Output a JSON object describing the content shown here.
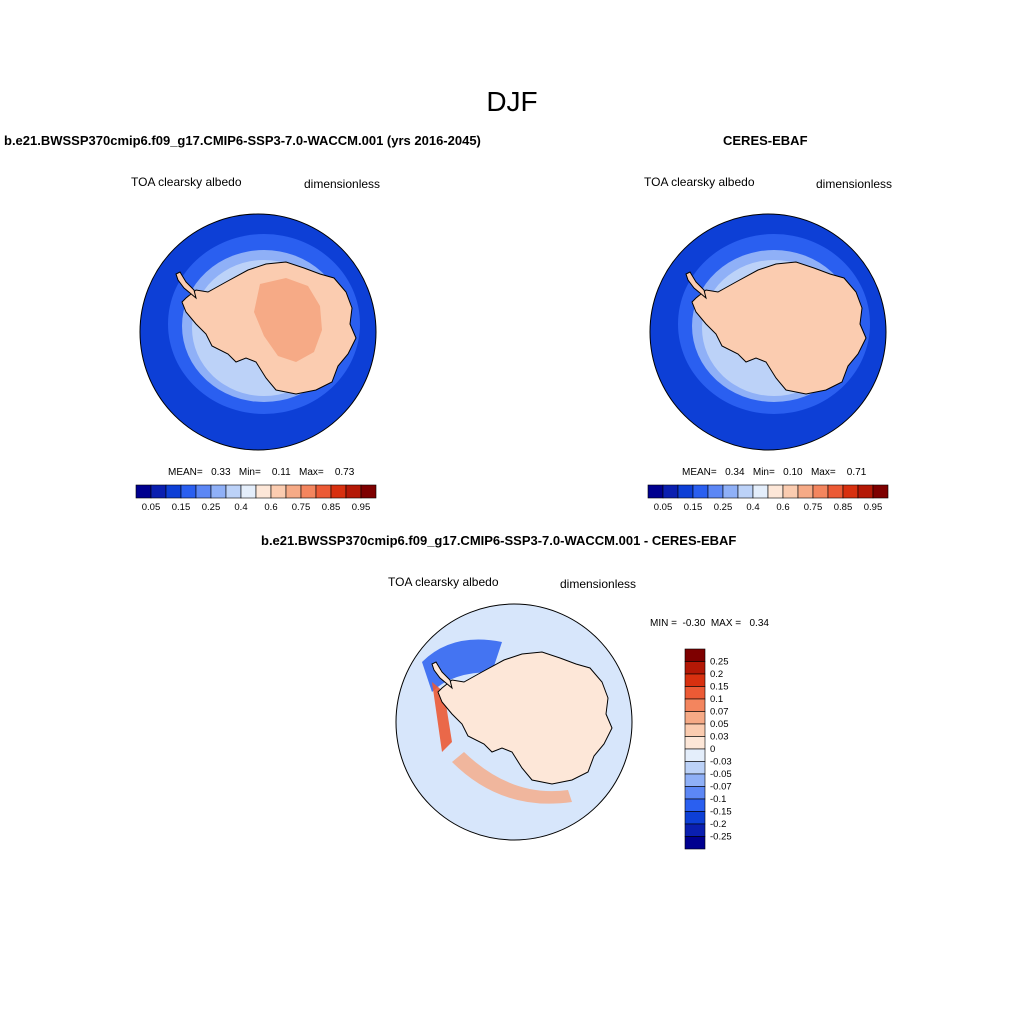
{
  "figure": {
    "title": "DJF"
  },
  "panels": [
    {
      "id": "model",
      "title": "b.e21.BWSSP370cmip6.f09_g17.CMIP6-SSP3-7.0-WACCM.001 (yrs 2016-2045)",
      "variable": "TOA clearsky albedo",
      "units": "dimensionless",
      "stats_text": "MEAN=   0.33   Min=    0.11   Max=    0.73"
    },
    {
      "id": "obs",
      "title": "CERES-EBAF",
      "variable": "TOA clearsky albedo",
      "units": "dimensionless",
      "stats_text": "MEAN=   0.34   Min=   0.10   Max=    0.71"
    },
    {
      "id": "diff",
      "title": "b.e21.BWSSP370cmip6.f09_g17.CMIP6-SSP3-7.0-WACCM.001 - CERES-EBAF",
      "variable": "TOA clearsky albedo",
      "units": "dimensionless",
      "stats_text": "MIN =  -0.30  MAX =   0.34"
    }
  ],
  "colorbar_main": {
    "tick_labels": [
      "0.05",
      "0.15",
      "0.25",
      "0.4",
      "0.6",
      "0.75",
      "0.85",
      "0.95"
    ],
    "colors": [
      "#00008f",
      "#0a1fb0",
      "#0d3fd6",
      "#2a5ff0",
      "#5c87f5",
      "#8fb0f7",
      "#bcd2f8",
      "#e4eefb",
      "#fde7d8",
      "#fbccb0",
      "#f6aa86",
      "#f3855e",
      "#ec5a35",
      "#d8300f",
      "#b41806",
      "#7e0000"
    ]
  },
  "colorbar_diff": {
    "tick_labels": [
      "0.25",
      "0.2",
      "0.15",
      "0.1",
      "0.07",
      "0.05",
      "0.03",
      "0",
      "-0.03",
      "-0.05",
      "-0.07",
      "-0.1",
      "-0.15",
      "-0.2",
      "-0.25"
    ],
    "colors": [
      "#7e0000",
      "#b41806",
      "#d8300f",
      "#ec5a35",
      "#f3855e",
      "#f6aa86",
      "#fbccb0",
      "#fde7d8",
      "#e4eefb",
      "#bcd2f8",
      "#8fb0f7",
      "#5c87f5",
      "#2a5ff0",
      "#0d3fd6",
      "#0a1fb0",
      "#00008f"
    ]
  },
  "map_colors": {
    "ocean_deep": "#0d3fd6",
    "ocean_mid": "#2a5ff0",
    "ocean_light": "#8fb0f7",
    "seaice": "#bcd2f8",
    "land_light": "#fbccb0",
    "land_high": "#f6aa86",
    "diff_bg": "#d7e6fb",
    "diff_land": "#fde7d8"
  }
}
